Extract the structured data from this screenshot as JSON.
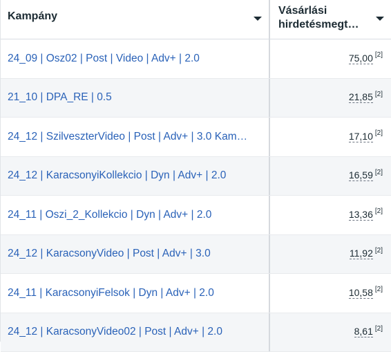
{
  "header": {
    "campaign_label": "Kampány",
    "value_label_line1": "Vásárlási",
    "value_label_line2": "hirdetésmegt…"
  },
  "rows": [
    {
      "campaign": "24_09 | Osz02 | Post | Video | Adv+ | 2.0",
      "value": "75,00",
      "ref": "[2]"
    },
    {
      "campaign": "21_10 | DPA_RE | 0.5",
      "value": "21,85",
      "ref": "[2]"
    },
    {
      "campaign": "24_12 | SzilveszterVideo | Post | Adv+ | 3.0 Kam…",
      "value": "17,10",
      "ref": "[2]"
    },
    {
      "campaign": "24_12 | KaracsonyiKollekcio | Dyn | Adv+ | 2.0",
      "value": "16,59",
      "ref": "[2]"
    },
    {
      "campaign": "24_11 | Oszi_2_Kollekcio | Dyn | Adv+ | 2.0",
      "value": "13,36",
      "ref": "[2]"
    },
    {
      "campaign": "24_12 | KaracsonyVideo | Post | Adv+ | 3.0",
      "value": "11,92",
      "ref": "[2]"
    },
    {
      "campaign": "24_11 | KaracsonyiFelsok | Dyn | Adv+ | 2.0",
      "value": "10,58",
      "ref": "[2]"
    },
    {
      "campaign": "24_12 | KaracsonyVideo02 | Post | Adv+ | 2.0",
      "value": "8,61",
      "ref": "[2]"
    }
  ],
  "icons": {
    "sort": "chevron-down-icon"
  },
  "colors": {
    "link": "#2a62b8",
    "text": "#1c2b33",
    "alt_row": "#f4f6f8"
  }
}
